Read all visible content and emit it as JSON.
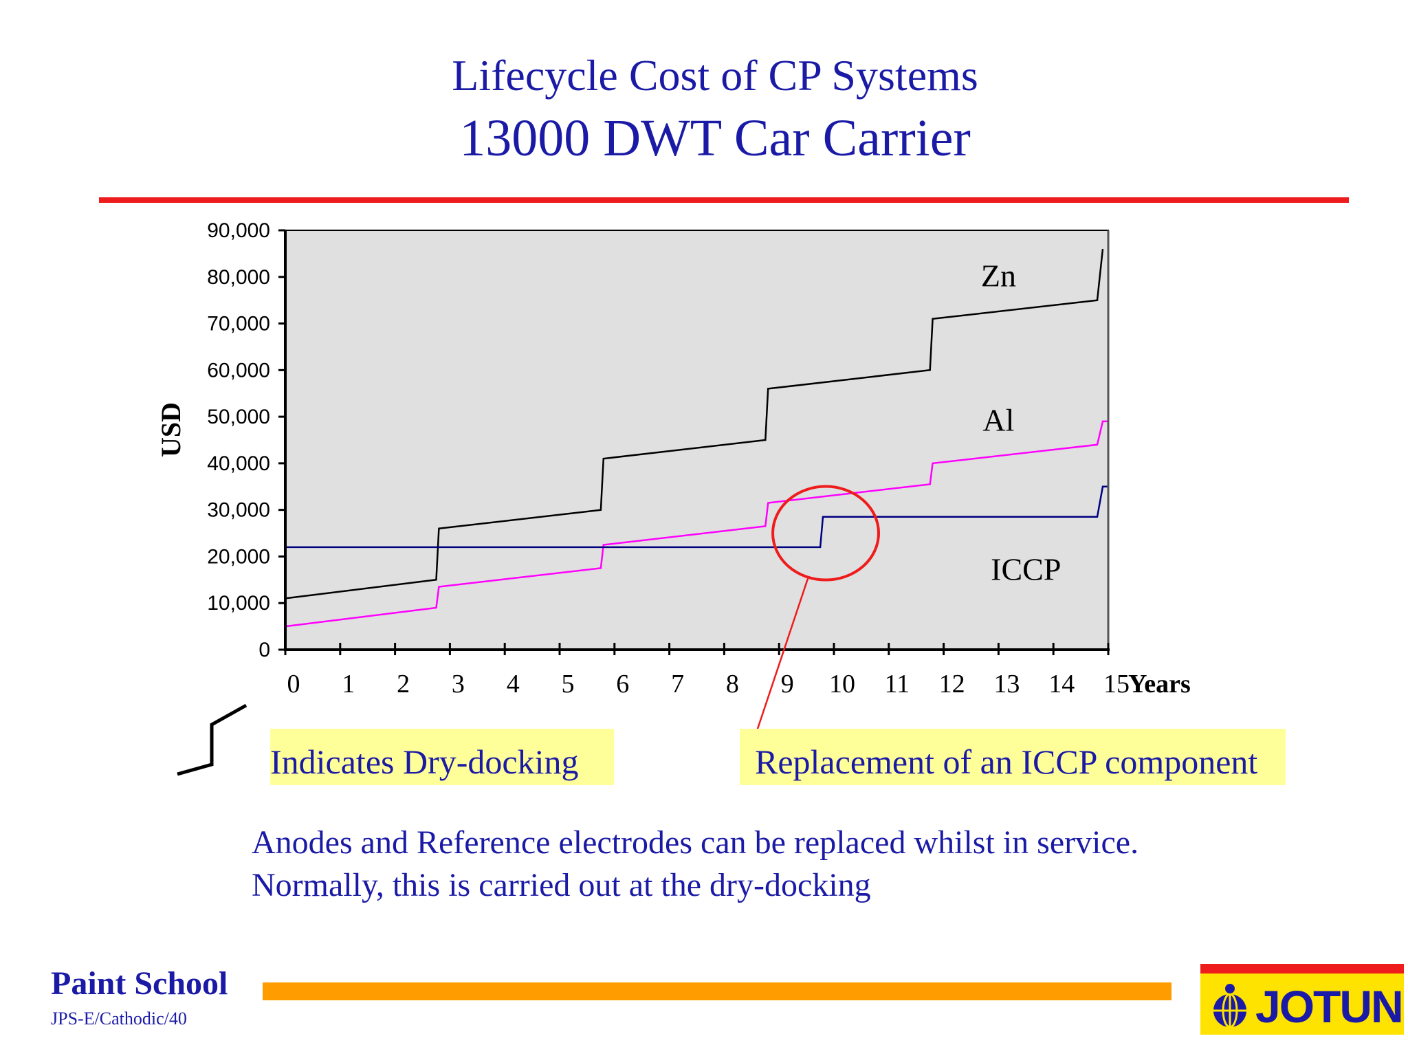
{
  "header": {
    "title_line1": "Lifecycle Cost of CP Systems",
    "title_line2": "13000 DWT Car Carrier"
  },
  "legend": {
    "drydock_label": "Indicates Dry-docking",
    "iccp_replacement_label": "Replacement of an ICCP component"
  },
  "notes": {
    "line1": "Anodes and Reference electrodes can be replaced whilst in service.",
    "line2": "Normally, this is carried out at the dry-docking"
  },
  "footer": {
    "brand": "Paint School",
    "code": "JPS-E/Cathodic/40",
    "logo_text": "JOTUN"
  },
  "colors": {
    "title": "#1a1aa6",
    "rule": "#ee1c1c",
    "plot_bg": "#e0e0e0",
    "zn": "#000000",
    "al": "#ff00ff",
    "iccp": "#000080",
    "highlight_circle": "#ee1c1c",
    "footer_bar": "#ff9d00",
    "logo_bg": "#ffe300"
  },
  "chart_data": {
    "type": "line",
    "ylabel": "USD",
    "xlabel": "Years",
    "xlim": [
      0,
      15
    ],
    "ylim": [
      0,
      90000
    ],
    "x_ticks": [
      "0",
      "1",
      "2",
      "3",
      "4",
      "5",
      "6",
      "7",
      "8",
      "9",
      "10",
      "11",
      "12",
      "13",
      "14",
      "15"
    ],
    "y_ticks": [
      "0",
      "10,000",
      "20,000",
      "30,000",
      "40,000",
      "50,000",
      "60,000",
      "70,000",
      "80,000",
      "90,000"
    ],
    "grid": false,
    "series": [
      {
        "name": "Zn",
        "color": "#000000",
        "points": [
          [
            0,
            11000
          ],
          [
            2.75,
            15000
          ],
          [
            2.8,
            26000
          ],
          [
            5.75,
            30000
          ],
          [
            5.8,
            41000
          ],
          [
            8.75,
            45000
          ],
          [
            8.8,
            56000
          ],
          [
            11.75,
            60000
          ],
          [
            11.8,
            71000
          ],
          [
            14.8,
            75000
          ],
          [
            14.9,
            86000
          ]
        ]
      },
      {
        "name": "Al",
        "color": "#ff00ff",
        "points": [
          [
            0,
            5000
          ],
          [
            2.75,
            9000
          ],
          [
            2.8,
            13500
          ],
          [
            5.75,
            17500
          ],
          [
            5.8,
            22500
          ],
          [
            8.75,
            26500
          ],
          [
            8.8,
            31500
          ],
          [
            11.75,
            35500
          ],
          [
            11.8,
            40000
          ],
          [
            14.8,
            44000
          ],
          [
            14.9,
            49000
          ],
          [
            15,
            49000
          ]
        ]
      },
      {
        "name": "ICCP",
        "color": "#000080",
        "points": [
          [
            0,
            22000
          ],
          [
            9.75,
            22000
          ],
          [
            9.8,
            28500
          ],
          [
            14.8,
            28500
          ],
          [
            14.9,
            35000
          ],
          [
            15,
            35000
          ]
        ]
      }
    ],
    "series_labels": [
      {
        "series": "Zn",
        "text": "Zn"
      },
      {
        "series": "Al",
        "text": "Al"
      },
      {
        "series": "ICCP",
        "text": "ICCP"
      }
    ],
    "annotation": {
      "type": "circle",
      "x": 9.85,
      "y": 25000,
      "meaning": "Replacement of an ICCP component"
    }
  }
}
